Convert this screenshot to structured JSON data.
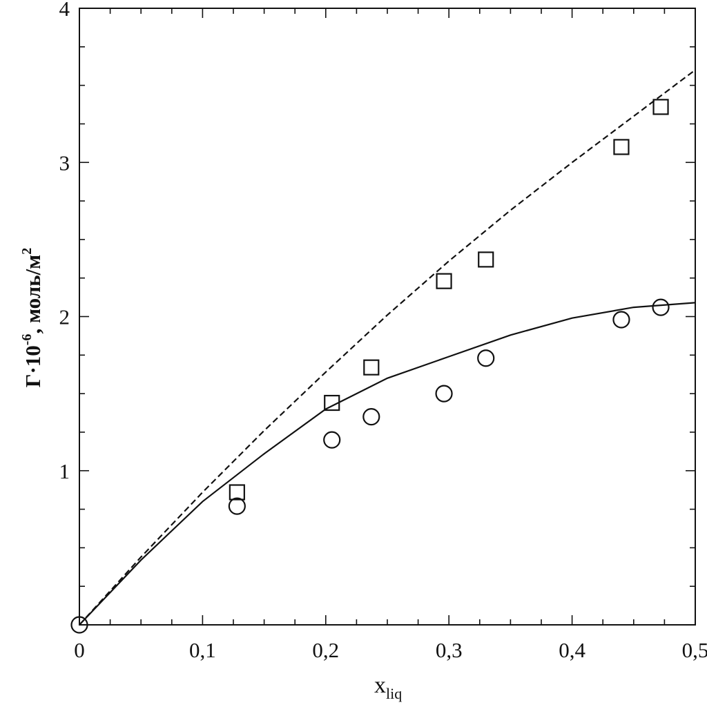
{
  "chart_data": {
    "type": "scatter",
    "xlabel": {
      "main": "x",
      "sub": "liq"
    },
    "ylabel": {
      "main": "Г·10",
      "sup1": "-6",
      "unit": ", моль/м",
      "sup2": "2"
    },
    "xlim": [
      0,
      0.5
    ],
    "ylim": [
      0,
      4
    ],
    "xticks": [
      {
        "value": 0,
        "label": "0"
      },
      {
        "value": 0.1,
        "label": "0,1"
      },
      {
        "value": 0.2,
        "label": "0,2"
      },
      {
        "value": 0.3,
        "label": "0,3"
      },
      {
        "value": 0.4,
        "label": "0,4"
      },
      {
        "value": 0.5,
        "label": "0,5"
      }
    ],
    "yticks": [
      {
        "value": 1,
        "label": "1"
      },
      {
        "value": 2,
        "label": "2"
      },
      {
        "value": 3,
        "label": "3"
      },
      {
        "value": 4,
        "label": "4"
      }
    ],
    "x_minor_step": 0.025,
    "y_minor_step": 0.25,
    "grid": false,
    "series": [
      {
        "marker": "square",
        "points": [
          {
            "x": 0.128,
            "y": 0.86
          },
          {
            "x": 0.205,
            "y": 1.44
          },
          {
            "x": 0.237,
            "y": 1.67
          },
          {
            "x": 0.296,
            "y": 2.23
          },
          {
            "x": 0.33,
            "y": 2.37
          },
          {
            "x": 0.44,
            "y": 3.1
          },
          {
            "x": 0.472,
            "y": 3.36
          }
        ]
      },
      {
        "marker": "circle",
        "points": [
          {
            "x": 0.0,
            "y": 0.0
          },
          {
            "x": 0.128,
            "y": 0.77
          },
          {
            "x": 0.205,
            "y": 1.2
          },
          {
            "x": 0.237,
            "y": 1.35
          },
          {
            "x": 0.296,
            "y": 1.5
          },
          {
            "x": 0.33,
            "y": 1.73
          },
          {
            "x": 0.44,
            "y": 1.98
          },
          {
            "x": 0.472,
            "y": 2.06
          }
        ]
      }
    ],
    "curves": [
      {
        "style": "dashed",
        "points": [
          {
            "x": 0,
            "y": 0
          },
          {
            "x": 0.05,
            "y": 0.44
          },
          {
            "x": 0.1,
            "y": 0.86
          },
          {
            "x": 0.15,
            "y": 1.26
          },
          {
            "x": 0.2,
            "y": 1.64
          },
          {
            "x": 0.25,
            "y": 2.01
          },
          {
            "x": 0.3,
            "y": 2.36
          },
          {
            "x": 0.35,
            "y": 2.69
          },
          {
            "x": 0.4,
            "y": 3.0
          },
          {
            "x": 0.45,
            "y": 3.3
          },
          {
            "x": 0.5,
            "y": 3.6
          }
        ]
      },
      {
        "style": "solid",
        "points": [
          {
            "x": 0,
            "y": 0
          },
          {
            "x": 0.05,
            "y": 0.42
          },
          {
            "x": 0.1,
            "y": 0.8
          },
          {
            "x": 0.15,
            "y": 1.11
          },
          {
            "x": 0.2,
            "y": 1.4
          },
          {
            "x": 0.25,
            "y": 1.6
          },
          {
            "x": 0.3,
            "y": 1.74
          },
          {
            "x": 0.35,
            "y": 1.88
          },
          {
            "x": 0.4,
            "y": 1.99
          },
          {
            "x": 0.45,
            "y": 2.06
          },
          {
            "x": 0.5,
            "y": 2.09
          }
        ]
      }
    ]
  }
}
